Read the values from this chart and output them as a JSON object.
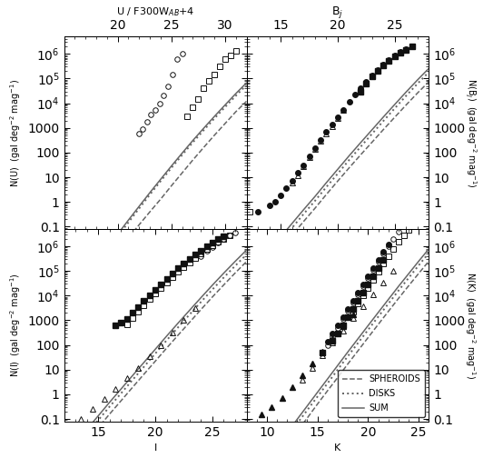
{
  "fig_width": 5.43,
  "fig_height": 5.04,
  "dpi": 100,
  "panels": {
    "TL": {
      "xmin": 15,
      "xmax": 32,
      "ymin": 0.08,
      "ymax": 5000000.0,
      "xticks": [
        20,
        25,
        30
      ],
      "yticks_major": [
        0.1,
        1,
        10,
        100,
        1000,
        10000,
        100000,
        1000000
      ],
      "ytick_labels": [
        "0.1",
        "1",
        "10",
        "100",
        "1000",
        "$10^4$",
        "$10^5$",
        "$10^6$"
      ],
      "model_spheroid_x": [
        15,
        16,
        17,
        18,
        19,
        20,
        21,
        22,
        23,
        24,
        25,
        26,
        27,
        28,
        29,
        30,
        31,
        32
      ],
      "model_spheroid_y": [
        2e-05,
        8e-05,
        0.0003,
        0.001,
        0.003,
        0.01,
        0.035,
        0.12,
        0.4,
        1.3,
        4.5,
        15,
        50,
        160,
        500,
        1500,
        4500,
        12000
      ],
      "model_disk_x": [
        15,
        16,
        17,
        18,
        19,
        20,
        21,
        22,
        23,
        24,
        25,
        26,
        27,
        28,
        29,
        30,
        31,
        32
      ],
      "model_disk_y": [
        3e-05,
        0.00015,
        0.0006,
        0.0025,
        0.01,
        0.04,
        0.15,
        0.55,
        2.0,
        7,
        24,
        80,
        260,
        800,
        2400,
        7000,
        20000,
        55000
      ],
      "model_sum_x": [
        15,
        16,
        17,
        18,
        19,
        20,
        21,
        22,
        23,
        24,
        25,
        26,
        27,
        28,
        29,
        30,
        31,
        32
      ],
      "model_sum_y": [
        5e-05,
        0.00023,
        0.0009,
        0.0035,
        0.013,
        0.05,
        0.185,
        0.67,
        2.4,
        8.3,
        28.5,
        95,
        310,
        960,
        2900,
        8500,
        24500,
        67000
      ],
      "data_circles_x": [
        22.0,
        22.3,
        22.7,
        23.1,
        23.5,
        23.9,
        24.3,
        24.7,
        25.1,
        25.5,
        26.0
      ],
      "data_circles_y": [
        600,
        900,
        1800,
        3500,
        5500,
        10000,
        20000,
        50000,
        150000,
        600000,
        1000000
      ],
      "data_squares_x": [
        26.5,
        27.0,
        27.5,
        28.0,
        28.5,
        29.0,
        29.5,
        30.0,
        30.5,
        31.0
      ],
      "data_squares_y": [
        3000,
        7000,
        15000,
        40000,
        80000,
        150000,
        300000,
        600000,
        900000,
        1300000
      ]
    },
    "TR": {
      "xmin": 12,
      "xmax": 28,
      "ymin": 0.08,
      "ymax": 5000000.0,
      "xticks": [
        15,
        20,
        25
      ],
      "model_spheroid_x": [
        12,
        13,
        14,
        15,
        16,
        17,
        18,
        19,
        20,
        21,
        22,
        23,
        24,
        25,
        26,
        27,
        28
      ],
      "model_spheroid_y": [
        0.0003,
        0.001,
        0.0035,
        0.013,
        0.045,
        0.16,
        0.55,
        2.0,
        7,
        24,
        80,
        260,
        850,
        2700,
        8500,
        26000,
        75000
      ],
      "model_disk_x": [
        12,
        13,
        14,
        15,
        16,
        17,
        18,
        19,
        20,
        21,
        22,
        23,
        24,
        25,
        26,
        27,
        28
      ],
      "model_disk_y": [
        0.0006,
        0.002,
        0.007,
        0.025,
        0.09,
        0.32,
        1.1,
        4,
        14,
        50,
        170,
        570,
        1900,
        6200,
        20000,
        62000,
        185000
      ],
      "model_sum_x": [
        12,
        13,
        14,
        15,
        16,
        17,
        18,
        19,
        20,
        21,
        22,
        23,
        24,
        25,
        26,
        27,
        28
      ],
      "model_sum_y": [
        0.0009,
        0.003,
        0.0105,
        0.038,
        0.135,
        0.48,
        1.65,
        6,
        21,
        74,
        250,
        830,
        2750,
        8900,
        28500,
        88000,
        260000
      ],
      "data_filled_circles_x": [
        13.0,
        14.0,
        14.5,
        15.0,
        15.5,
        16.0,
        16.5,
        17.0,
        17.5,
        18.0,
        18.5,
        19.0,
        19.5,
        20.0,
        20.5,
        21.0,
        21.5,
        22.0,
        22.5,
        23.0,
        23.5,
        24.0,
        24.5,
        25.0,
        25.5,
        26.0,
        26.5
      ],
      "data_filled_circles_y": [
        0.4,
        0.7,
        1.0,
        1.8,
        3.5,
        7,
        15,
        30,
        70,
        150,
        320,
        700,
        1400,
        2800,
        5500,
        11000,
        22000,
        42000,
        75000,
        130000,
        220000,
        360000,
        560000,
        850000,
        1200000,
        1600000,
        2000000
      ],
      "data_filled_squares_x": [
        22.0,
        22.5,
        23.0,
        23.5,
        24.0,
        24.5,
        25.0,
        25.5,
        26.0,
        26.5
      ],
      "data_filled_squares_y": [
        30000,
        65000,
        120000,
        200000,
        330000,
        520000,
        800000,
        1100000,
        1500000,
        2000000
      ],
      "data_open_squares_x": [
        12.3
      ],
      "data_open_squares_y": [
        0.4
      ],
      "data_open_triangles_x": [
        16.0,
        16.5,
        17.0,
        17.5,
        18.0,
        18.5,
        19.0,
        19.5,
        20.0,
        20.5
      ],
      "data_open_triangles_y": [
        6,
        12,
        28,
        65,
        140,
        300,
        600,
        1200,
        2500,
        5500
      ]
    },
    "BL": {
      "xmin": 12,
      "xmax": 28,
      "ymin": 0.08,
      "ymax": 5000000.0,
      "xticks": [
        15,
        20,
        25
      ],
      "model_spheroid_x": [
        12,
        13,
        14,
        15,
        16,
        17,
        18,
        19,
        20,
        21,
        22,
        23,
        24,
        25,
        26,
        27,
        28
      ],
      "model_spheroid_y": [
        0.001,
        0.0035,
        0.013,
        0.045,
        0.16,
        0.55,
        1.9,
        6.5,
        22,
        75,
        250,
        820,
        2700,
        8700,
        27000,
        82000,
        240000
      ],
      "model_disk_x": [
        12,
        13,
        14,
        15,
        16,
        17,
        18,
        19,
        20,
        21,
        22,
        23,
        24,
        25,
        26,
        27,
        28
      ],
      "model_disk_y": [
        0.002,
        0.007,
        0.025,
        0.09,
        0.32,
        1.1,
        3.8,
        13,
        45,
        155,
        520,
        1700,
        5500,
        17500,
        54000,
        160000,
        460000
      ],
      "model_sum_x": [
        12,
        13,
        14,
        15,
        16,
        17,
        18,
        19,
        20,
        21,
        22,
        23,
        24,
        25,
        26,
        27,
        28
      ],
      "model_sum_y": [
        0.003,
        0.0105,
        0.038,
        0.135,
        0.48,
        1.65,
        5.7,
        19.5,
        67,
        230,
        770,
        2520,
        8200,
        26200,
        81000,
        242000,
        700000
      ],
      "data_filled_squares_x": [
        16.5,
        17.0,
        17.5,
        18.0,
        18.5,
        19.0,
        19.5,
        20.0,
        20.5,
        21.0,
        21.5,
        22.0,
        22.5,
        23.0,
        23.5,
        24.0,
        24.5,
        25.0,
        25.5,
        26.0
      ],
      "data_filled_squares_y": [
        600,
        800,
        1100,
        2000,
        3500,
        6000,
        10000,
        17000,
        28000,
        48000,
        80000,
        130000,
        200000,
        310000,
        460000,
        680000,
        980000,
        1400000,
        1900000,
        2500000
      ],
      "data_open_squares_x": [
        17.5,
        18.0,
        18.5,
        19.0,
        19.5,
        20.0,
        20.5,
        21.0,
        21.5,
        22.0,
        22.5,
        23.0,
        23.5,
        24.0,
        24.5,
        25.0,
        25.5,
        26.0,
        26.5
      ],
      "data_open_squares_y": [
        700,
        1200,
        2200,
        4000,
        7000,
        12000,
        20000,
        33000,
        55000,
        90000,
        145000,
        220000,
        340000,
        510000,
        750000,
        1050000,
        1500000,
        2000000,
        2800000
      ],
      "data_open_circles_x": [
        24.0,
        24.5,
        25.0,
        25.5,
        26.0,
        26.5,
        27.0
      ],
      "data_open_circles_y": [
        400000,
        650000,
        950000,
        1400000,
        1900000,
        2700000,
        3600000
      ],
      "data_open_triangles_x": [
        13.5,
        14.5,
        15.5,
        16.5,
        17.5,
        18.5,
        19.5,
        20.5,
        21.5,
        22.5,
        23.5
      ],
      "data_open_triangles_y": [
        0.1,
        0.25,
        0.65,
        1.7,
        4.5,
        12,
        35,
        100,
        310,
        1000,
        3200
      ]
    },
    "BR": {
      "xmin": 8,
      "xmax": 26,
      "ymin": 0.08,
      "ymax": 5000000.0,
      "xticks": [
        10,
        15,
        20,
        25
      ],
      "model_spheroid_x": [
        8,
        9,
        10,
        11,
        12,
        13,
        14,
        15,
        16,
        17,
        18,
        19,
        20,
        21,
        22,
        23,
        24,
        25,
        26
      ],
      "model_spheroid_y": [
        5e-05,
        0.0002,
        0.0007,
        0.0025,
        0.009,
        0.032,
        0.11,
        0.4,
        1.4,
        4.8,
        17,
        58,
        200,
        680,
        2300,
        7700,
        25000,
        80000,
        250000
      ],
      "model_disk_x": [
        8,
        9,
        10,
        11,
        12,
        13,
        14,
        15,
        16,
        17,
        18,
        19,
        20,
        21,
        22,
        23,
        24,
        25,
        26
      ],
      "model_disk_y": [
        0.0001,
        0.0004,
        0.0015,
        0.005,
        0.018,
        0.065,
        0.23,
        0.8,
        2.8,
        10,
        35,
        120,
        410,
        1400,
        4700,
        16000,
        52000,
        170000,
        540000
      ],
      "model_sum_x": [
        8,
        9,
        10,
        11,
        12,
        13,
        14,
        15,
        16,
        17,
        18,
        19,
        20,
        21,
        22,
        23,
        24,
        25,
        26
      ],
      "model_sum_y": [
        0.00015,
        0.0006,
        0.0022,
        0.0075,
        0.027,
        0.097,
        0.34,
        1.2,
        4.2,
        14.8,
        52,
        178,
        610,
        2080,
        7000,
        23700,
        77000,
        250000,
        790000
      ],
      "data_filled_triangles_x": [
        9.5,
        10.5,
        11.5,
        12.5,
        13.5,
        14.5,
        15.5,
        16.5,
        17.5,
        18.5
      ],
      "data_filled_triangles_y": [
        0.15,
        0.3,
        0.7,
        2,
        6,
        18,
        55,
        170,
        550,
        1800
      ],
      "data_filled_squares_x": [
        15.5,
        16.5,
        17.0,
        17.5,
        18.0,
        18.5,
        19.0,
        19.5,
        20.0,
        20.5,
        21.0,
        21.5
      ],
      "data_filled_squares_y": [
        50,
        150,
        300,
        600,
        1300,
        2800,
        6000,
        13000,
        28000,
        60000,
        130000,
        280000
      ],
      "data_filled_circles_x": [
        16.0,
        16.5,
        17.0,
        17.5,
        18.0,
        18.5,
        19.0,
        19.5,
        20.0,
        20.5,
        21.0,
        21.5,
        22.0
      ],
      "data_filled_circles_y": [
        130,
        280,
        600,
        1300,
        2800,
        6000,
        13000,
        28000,
        60000,
        130000,
        280000,
        580000,
        1200000
      ],
      "data_open_circles_x": [
        16.0,
        16.5,
        17.0,
        17.5,
        18.0,
        18.5,
        19.0,
        19.5,
        20.0,
        20.5,
        21.0,
        21.5,
        22.0,
        22.5,
        23.0
      ],
      "data_open_circles_y": [
        100,
        220,
        500,
        1100,
        2400,
        5200,
        11000,
        24000,
        52000,
        110000,
        240000,
        500000,
        1000000,
        2000000,
        3800000
      ],
      "data_open_squares_x": [
        18.5,
        19.0,
        19.5,
        20.0,
        20.5,
        21.0,
        21.5,
        22.0,
        22.5,
        23.0,
        23.5,
        24.0,
        24.5
      ],
      "data_open_squares_y": [
        2200,
        4800,
        10000,
        21000,
        45000,
        95000,
        200000,
        400000,
        800000,
        1500000,
        2700000,
        4500000,
        7000000
      ],
      "data_open_triangles_x": [
        13.5,
        14.5,
        15.5,
        16.5,
        17.5,
        18.5,
        19.5,
        20.5,
        21.5,
        22.5
      ],
      "data_open_triangles_y": [
        4,
        12,
        38,
        120,
        380,
        1200,
        3700,
        11000,
        34000,
        100000
      ]
    }
  },
  "line_color": "#666666",
  "data_color": "#111111",
  "line_width": 1.1,
  "ms": 4.0
}
